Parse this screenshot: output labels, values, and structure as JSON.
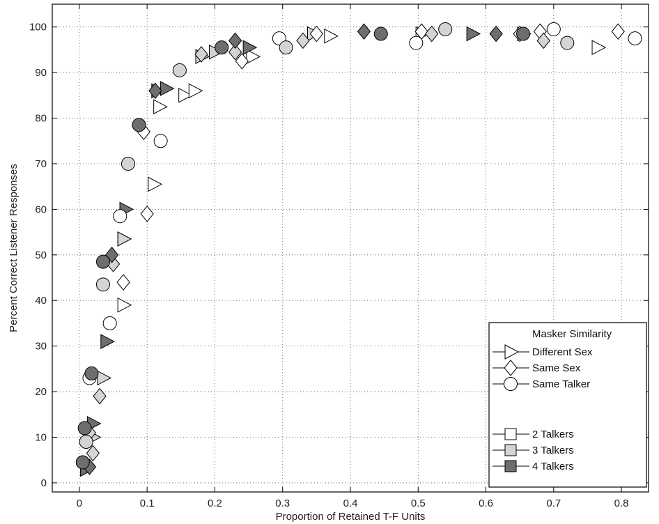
{
  "chart_data": {
    "type": "scatter",
    "title": "",
    "xlabel": "Proportion of Retained T-F Units",
    "ylabel": "Percent Correct Listener Responses",
    "xlim": [
      -0.04,
      0.84
    ],
    "ylim": [
      -2,
      105
    ],
    "xticks": [
      0,
      0.1,
      0.2,
      0.3,
      0.4,
      0.5,
      0.6,
      0.7,
      0.8
    ],
    "xtick_labels": [
      "0",
      "0.1",
      "0.2",
      "0.3",
      "0.4",
      "0.5",
      "0.6",
      "0.7",
      "0.8"
    ],
    "yticks": [
      0,
      10,
      20,
      30,
      40,
      50,
      60,
      70,
      80,
      90,
      100
    ],
    "ytick_labels": [
      "0",
      "10",
      "20",
      "30",
      "40",
      "50",
      "60",
      "70",
      "80",
      "90",
      "100"
    ],
    "grid": true,
    "legend_position": "bottom-right",
    "legend": {
      "header": "Masker Similarity",
      "markers": [
        {
          "label": "Different Sex",
          "shape": "triangle"
        },
        {
          "label": "Same Sex",
          "shape": "diamond"
        },
        {
          "label": "Same Talker",
          "shape": "circle"
        }
      ],
      "talkers": [
        {
          "label": "2 Talkers",
          "color": "#ffffff"
        },
        {
          "label": "3 Talkers",
          "color": "#d4d4d4"
        },
        {
          "label": "4 Talkers",
          "color": "#6e6e6e"
        }
      ]
    },
    "series": [
      {
        "marker": "triangle",
        "talkers": 2,
        "color": "#ffffff",
        "x": [
          0.065,
          0.065,
          0.11,
          0.118,
          0.155,
          0.17,
          0.255,
          0.37,
          0.505,
          0.655,
          0.765
        ],
        "y": [
          39,
          53.5,
          65.5,
          82.5,
          85,
          86,
          93.5,
          98,
          98.5,
          98.5,
          95.5
        ]
      },
      {
        "marker": "triangle",
        "talkers": 3,
        "color": "#d4d4d4",
        "x": [
          0.01,
          0.02,
          0.035,
          0.065,
          0.18,
          0.2,
          0.345
        ],
        "y": [
          3,
          10,
          23,
          53.5,
          93.5,
          94.5,
          98.5
        ]
      },
      {
        "marker": "triangle",
        "talkers": 4,
        "color": "#6e6e6e",
        "x": [
          0.01,
          0.02,
          0.04,
          0.068,
          0.115,
          0.128,
          0.25,
          0.58
        ],
        "y": [
          3,
          13,
          31,
          60,
          86,
          86.5,
          95.5,
          98.5
        ]
      },
      {
        "marker": "diamond",
        "talkers": 2,
        "color": "#ffffff",
        "x": [
          0.065,
          0.1,
          0.095,
          0.24,
          0.35,
          0.505,
          0.65,
          0.68,
          0.795
        ],
        "y": [
          44,
          59,
          77,
          92.5,
          98.5,
          99,
          98.5,
          99,
          99
        ]
      },
      {
        "marker": "diamond",
        "talkers": 3,
        "color": "#d4d4d4",
        "x": [
          0.015,
          0.02,
          0.03,
          0.05,
          0.18,
          0.23,
          0.33,
          0.52,
          0.685
        ],
        "y": [
          11,
          6.5,
          19,
          48,
          94,
          94.5,
          97,
          98.5,
          97
        ]
      },
      {
        "marker": "diamond",
        "talkers": 4,
        "color": "#6e6e6e",
        "x": [
          0.015,
          0.048,
          0.112,
          0.23,
          0.42,
          0.615
        ],
        "y": [
          3.5,
          50,
          86,
          97,
          99,
          98.5
        ]
      },
      {
        "marker": "circle",
        "talkers": 2,
        "color": "#ffffff",
        "x": [
          0.015,
          0.045,
          0.06,
          0.12,
          0.295,
          0.497,
          0.7,
          0.82
        ],
        "y": [
          23,
          35,
          58.5,
          75,
          97.5,
          96.5,
          99.5,
          97.5
        ]
      },
      {
        "marker": "circle",
        "talkers": 3,
        "color": "#d4d4d4",
        "x": [
          0.01,
          0.035,
          0.072,
          0.148,
          0.305,
          0.54,
          0.72
        ],
        "y": [
          9,
          43.5,
          70,
          90.5,
          95.5,
          99.5,
          96.5
        ]
      },
      {
        "marker": "circle",
        "talkers": 4,
        "color": "#6e6e6e",
        "x": [
          0.005,
          0.008,
          0.018,
          0.035,
          0.088,
          0.21,
          0.445,
          0.655
        ],
        "y": [
          4.5,
          12,
          24,
          48.5,
          78.5,
          95.5,
          98.5,
          98.5
        ]
      }
    ]
  }
}
